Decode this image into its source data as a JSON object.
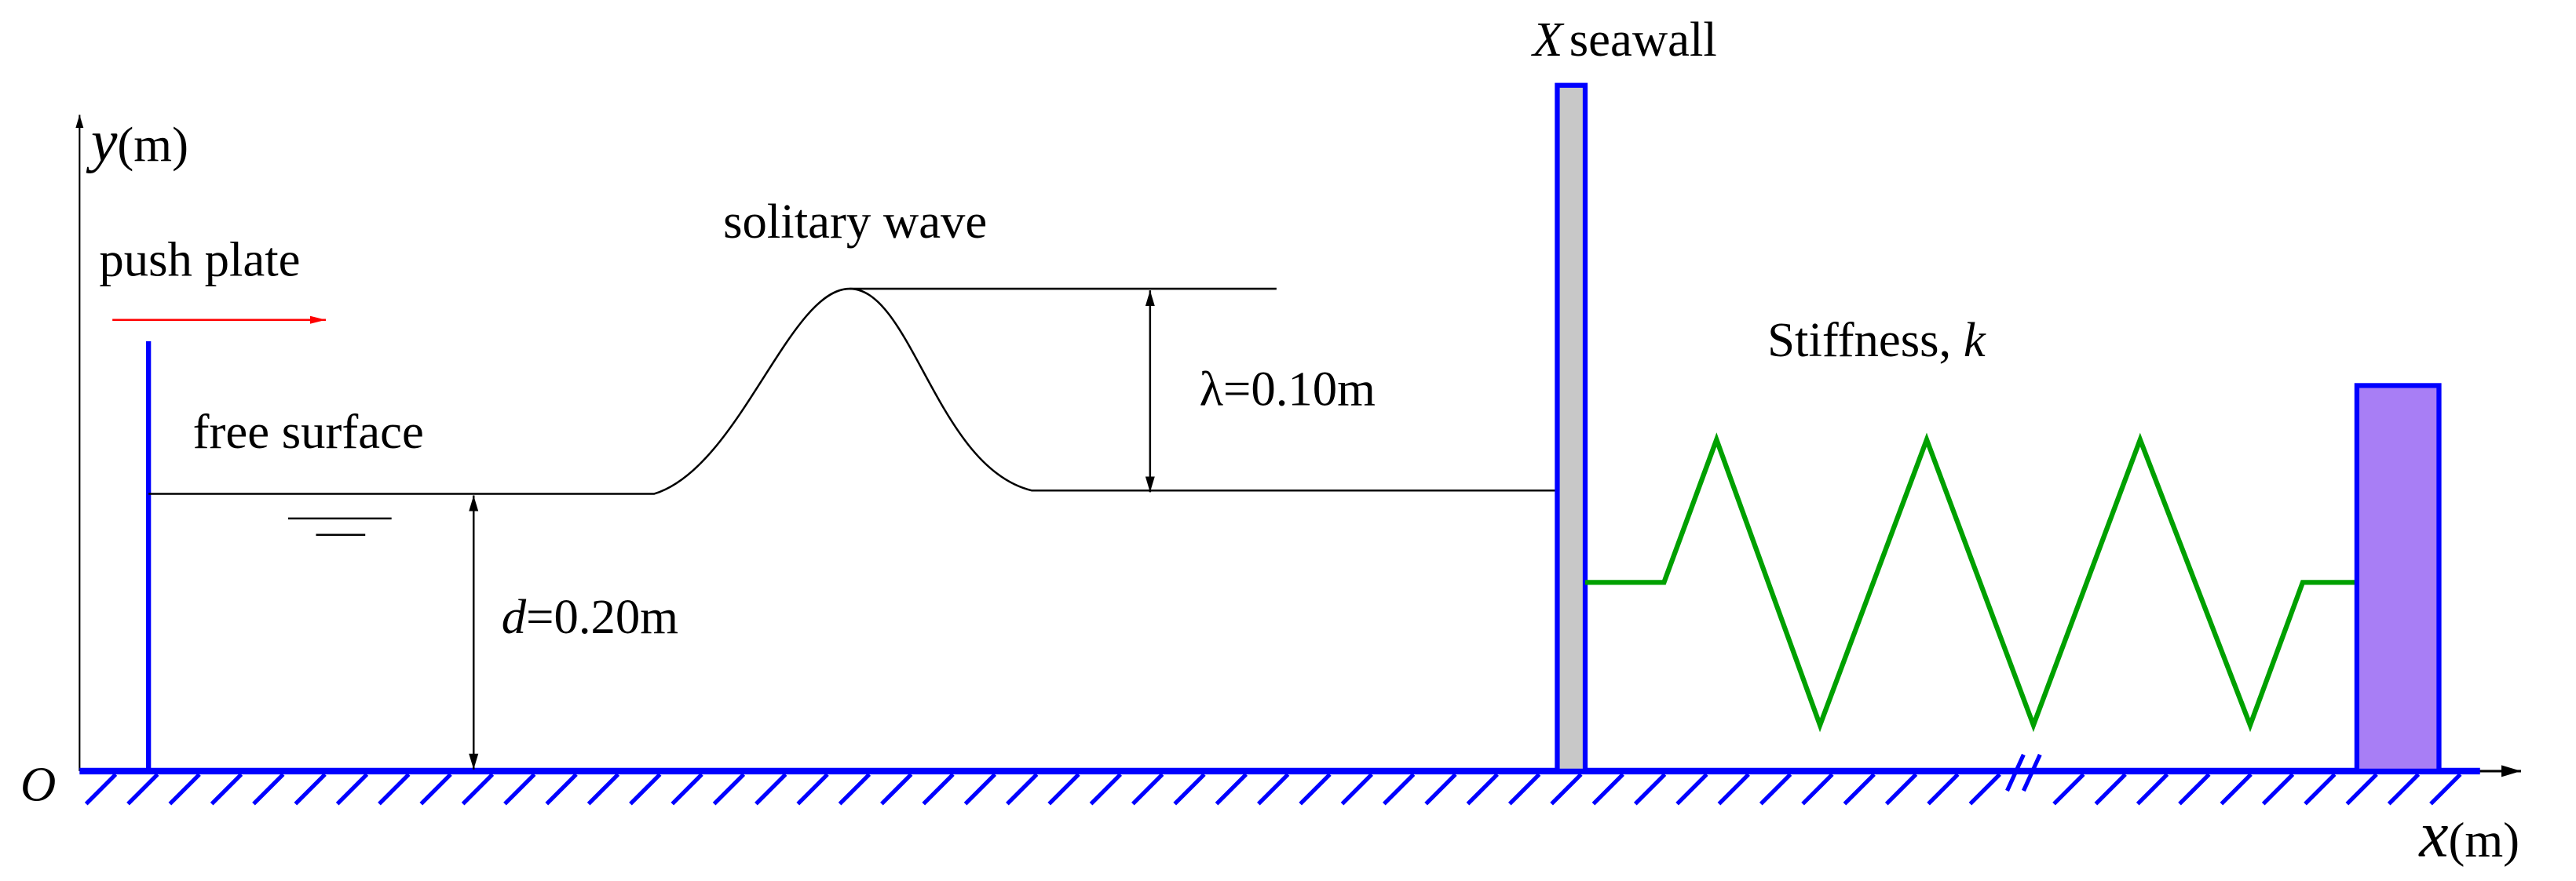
{
  "axes": {
    "y_symbol": "y",
    "y_unit": "(m)",
    "x_symbol": "x",
    "x_unit": "(m)",
    "origin": "O"
  },
  "labels": {
    "push_plate": "push plate",
    "free_surface": "free surface",
    "solitary_wave": "solitary wave",
    "wave_height": "λ=0.10m",
    "depth_symbol": "d",
    "depth_value": "=0.20m",
    "seawall_symbol": "X",
    "seawall": "seawall",
    "stiffness": "Stiffness, ",
    "stiffness_symbol": "k"
  }
}
